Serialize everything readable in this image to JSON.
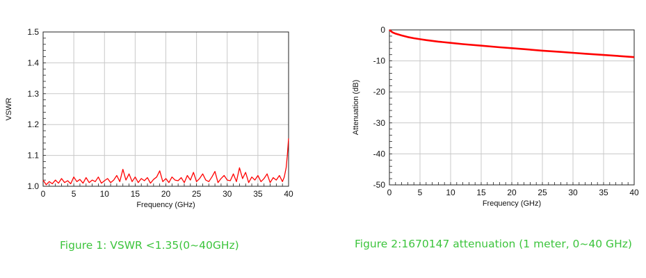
{
  "chart_data": [
    {
      "type": "line",
      "title": "",
      "xlabel": "Frequency (GHz)",
      "ylabel": "VSWR",
      "xlim": [
        0,
        40
      ],
      "ylim": [
        1.0,
        1.5
      ],
      "xticks": [
        "0",
        "5",
        "10",
        "15",
        "20",
        "25",
        "30",
        "35",
        "40"
      ],
      "yticks": [
        "1.0",
        "1.1",
        "1.2",
        "1.3",
        "1.4",
        "1.5"
      ],
      "grid": true,
      "line_color": "#ff0000",
      "series": [
        {
          "x": [
            0,
            0.5,
            1,
            1.5,
            2,
            2.5,
            3,
            3.5,
            4,
            4.5,
            5,
            5.5,
            6,
            6.5,
            7,
            7.5,
            8,
            8.5,
            9,
            9.5,
            10,
            10.5,
            11,
            11.5,
            12,
            12.5,
            13,
            13.5,
            14,
            14.5,
            15,
            15.5,
            16,
            16.5,
            17,
            17.5,
            18,
            18.5,
            19,
            19.5,
            20,
            20.5,
            21,
            21.5,
            22,
            22.5,
            23,
            23.5,
            24,
            24.5,
            25,
            25.5,
            26,
            26.5,
            27,
            27.5,
            28,
            28.5,
            29,
            29.5,
            30,
            30.5,
            31,
            31.5,
            32,
            32.5,
            33,
            33.5,
            34,
            34.5,
            35,
            35.5,
            36,
            36.5,
            37,
            37.5,
            38,
            38.5,
            39,
            39.3,
            39.6,
            39.8,
            40
          ],
          "y": [
            1.02,
            1.005,
            1.015,
            1.008,
            1.02,
            1.01,
            1.025,
            1.012,
            1.018,
            1.008,
            1.03,
            1.015,
            1.022,
            1.01,
            1.028,
            1.012,
            1.02,
            1.015,
            1.03,
            1.01,
            1.018,
            1.025,
            1.012,
            1.02,
            1.035,
            1.015,
            1.055,
            1.02,
            1.04,
            1.015,
            1.03,
            1.012,
            1.025,
            1.018,
            1.028,
            1.01,
            1.022,
            1.03,
            1.05,
            1.015,
            1.025,
            1.012,
            1.03,
            1.02,
            1.018,
            1.028,
            1.012,
            1.035,
            1.02,
            1.045,
            1.015,
            1.025,
            1.04,
            1.02,
            1.015,
            1.03,
            1.048,
            1.012,
            1.025,
            1.035,
            1.02,
            1.018,
            1.04,
            1.015,
            1.06,
            1.025,
            1.045,
            1.012,
            1.03,
            1.02,
            1.035,
            1.015,
            1.025,
            1.04,
            1.012,
            1.028,
            1.02,
            1.035,
            1.015,
            1.03,
            1.06,
            1.1,
            1.155
          ]
        }
      ]
    },
    {
      "type": "line",
      "title": "",
      "xlabel": "Frequency (GHz)",
      "ylabel": "Attenuation (dB)",
      "xlim": [
        0,
        40
      ],
      "ylim": [
        -50,
        0
      ],
      "xticks": [
        "0",
        "5",
        "10",
        "15",
        "20",
        "25",
        "30",
        "35",
        "40"
      ],
      "yticks": [
        "0",
        "-10",
        "-20",
        "-30",
        "-40",
        "-50"
      ],
      "grid": true,
      "line_color": "#ff0000",
      "series": [
        {
          "x": [
            0,
            0.5,
            1,
            2,
            3,
            4,
            5,
            6,
            8,
            10,
            12,
            15,
            18,
            20,
            22,
            25,
            28,
            30,
            32,
            35,
            38,
            40
          ],
          "y": [
            0,
            -0.8,
            -1.2,
            -1.8,
            -2.3,
            -2.7,
            -3.0,
            -3.3,
            -3.8,
            -4.2,
            -4.6,
            -5.1,
            -5.6,
            -5.9,
            -6.2,
            -6.7,
            -7.1,
            -7.4,
            -7.7,
            -8.1,
            -8.5,
            -8.8
          ]
        }
      ]
    }
  ],
  "captions": {
    "figure1": "Figure 1:  VSWR <1.35(0~40GHz)",
    "figure2": "Figure 2:1670147 attenuation (1 meter, 0~40 GHz)"
  }
}
